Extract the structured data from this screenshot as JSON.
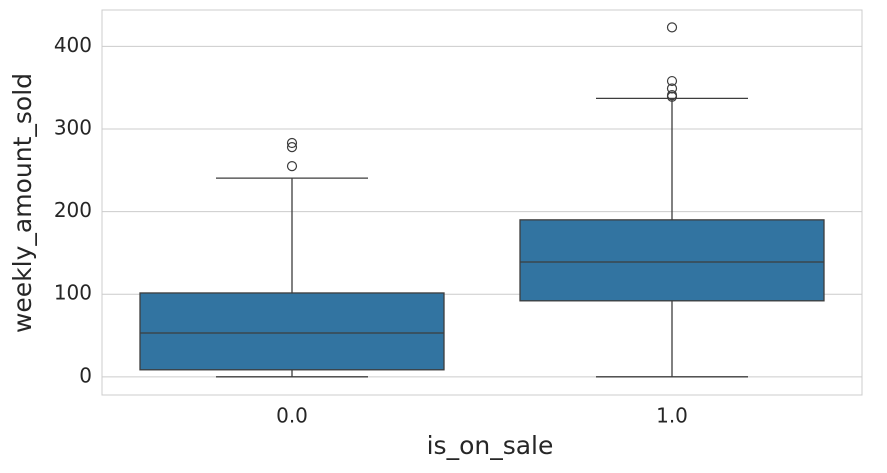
{
  "chart_data": {
    "type": "box",
    "x_label": "is_on_sale",
    "y_label": "weekly_amount_sold",
    "categories": [
      "0.0",
      "1.0"
    ],
    "color": "#3274a1",
    "boxes": [
      {
        "min": 0,
        "q1": 8.5,
        "median": 53,
        "q3": 101.5,
        "max": 240.5,
        "outliers": [
          255,
          278,
          283
        ]
      },
      {
        "min": 0,
        "q1": 92,
        "median": 139,
        "q3": 190,
        "max": 337,
        "outliers": [
          339,
          341,
          349,
          358,
          423
        ]
      }
    ],
    "ylim": [
      -22,
      444
    ],
    "yticks": [
      0,
      100,
      200,
      300,
      400
    ],
    "grid": true
  }
}
